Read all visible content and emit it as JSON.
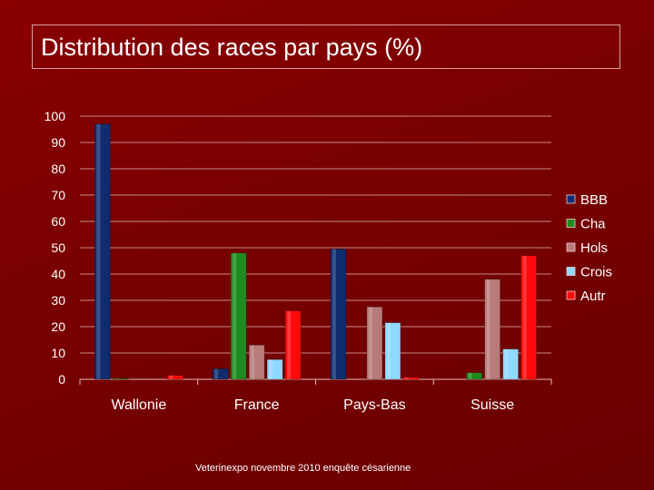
{
  "title": "Distribution des races par pays (%)",
  "footer": "Veterinexpo novembre 2010 enquête césarienne",
  "chart_data": {
    "type": "bar",
    "categories": [
      "Wallonie",
      "France",
      "Pays-Bas",
      "Suisse"
    ],
    "series": [
      {
        "name": "BBB",
        "color": "#0f2d6e",
        "values": [
          97,
          4,
          49.5,
          0
        ]
      },
      {
        "name": "Cha",
        "color": "#1f8a1f",
        "values": [
          0.3,
          48,
          0,
          2.5
        ]
      },
      {
        "name": "Hols",
        "color": "#b97a7a",
        "values": [
          0,
          13,
          27.5,
          38
        ]
      },
      {
        "name": "Crois",
        "color": "#8fd8ff",
        "values": [
          0,
          7.5,
          21.5,
          11.5
        ]
      },
      {
        "name": "Autr",
        "color": "#ff0a0a",
        "values": [
          1.5,
          26,
          0.8,
          47
        ]
      }
    ],
    "ylim": [
      0,
      100
    ],
    "yticks": [
      "0",
      "10",
      "20",
      "30",
      "40",
      "50",
      "60",
      "70",
      "80",
      "90",
      "100"
    ],
    "grid": true,
    "legend": "right"
  }
}
